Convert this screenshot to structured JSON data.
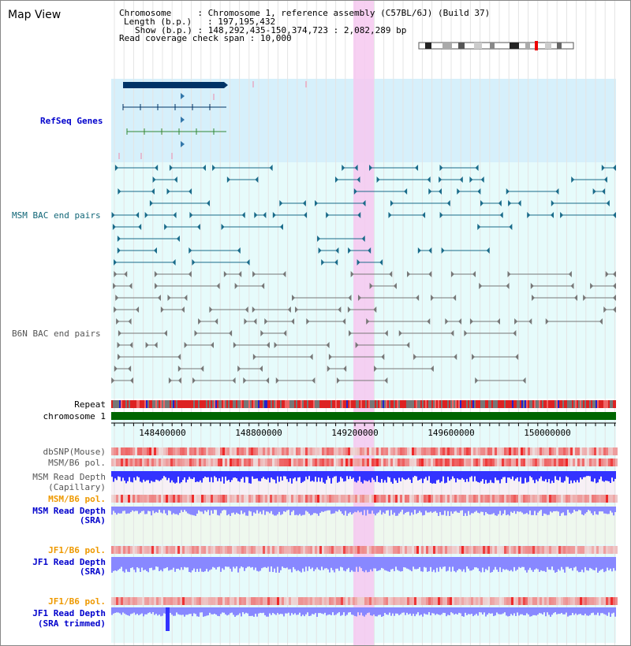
{
  "title": "Map View",
  "info": {
    "chromosome_key": "Chromosome",
    "chromosome_value": "Chromosome 1, reference assembly (C57BL/6J) (Build 37)",
    "length_key": "Length (b.p.)",
    "length_value": "197,195,432",
    "show_key": "Show (b.p.)",
    "show_value": "148,292,435-150,374,723 : 2,082,289 bp",
    "span_key": "Read coverage check span",
    "span_value": "10,000"
  },
  "tracks": {
    "refseq": "RefSeq Genes",
    "msm_bac": "MSM BAC end pairs",
    "b6n_bac": "B6N BAC end pairs",
    "repeat": "Repeat",
    "chromosome": "chromosome 1",
    "dbsnp": "dbSNP(Mouse)",
    "msm_b6_pol_cap": "MSM/B6 pol.",
    "msm_read_depth_cap_1": "MSM Read Depth",
    "msm_read_depth_cap_2": "(Capillary)",
    "msm_b6_pol_sra": "MSM/B6 pol.",
    "msm_read_depth_sra_1": "MSM Read Depth",
    "msm_read_depth_sra_2": "(SRA)",
    "jf1_b6_pol_1": "JF1/B6 pol.",
    "jf1_read_depth_1": "JF1 Read Depth",
    "jf1_read_depth_2": "(SRA)",
    "jf1_b6_pol_2": "JF1/B6 pol.",
    "jf1_read_depth_trim_1": "JF1 Read Depth",
    "jf1_read_depth_trim_2": "(SRA trimmed)"
  },
  "axis_ticks": [
    "148400000",
    "148800000",
    "149200000",
    "149600000",
    "150000000"
  ],
  "colors": {
    "refseq_bg": "#d6f0fb",
    "bac_bg": "#e6fbfb",
    "highlight": "#f6c8f0",
    "chromosome": "#006600",
    "refseq_line": "#003366",
    "msm_feature": "#1a6b8a",
    "b6n_feature": "#777777",
    "depth_blue": "#3333ff",
    "depth_light": "#8888ff",
    "pol_red": "#ee3333"
  }
}
